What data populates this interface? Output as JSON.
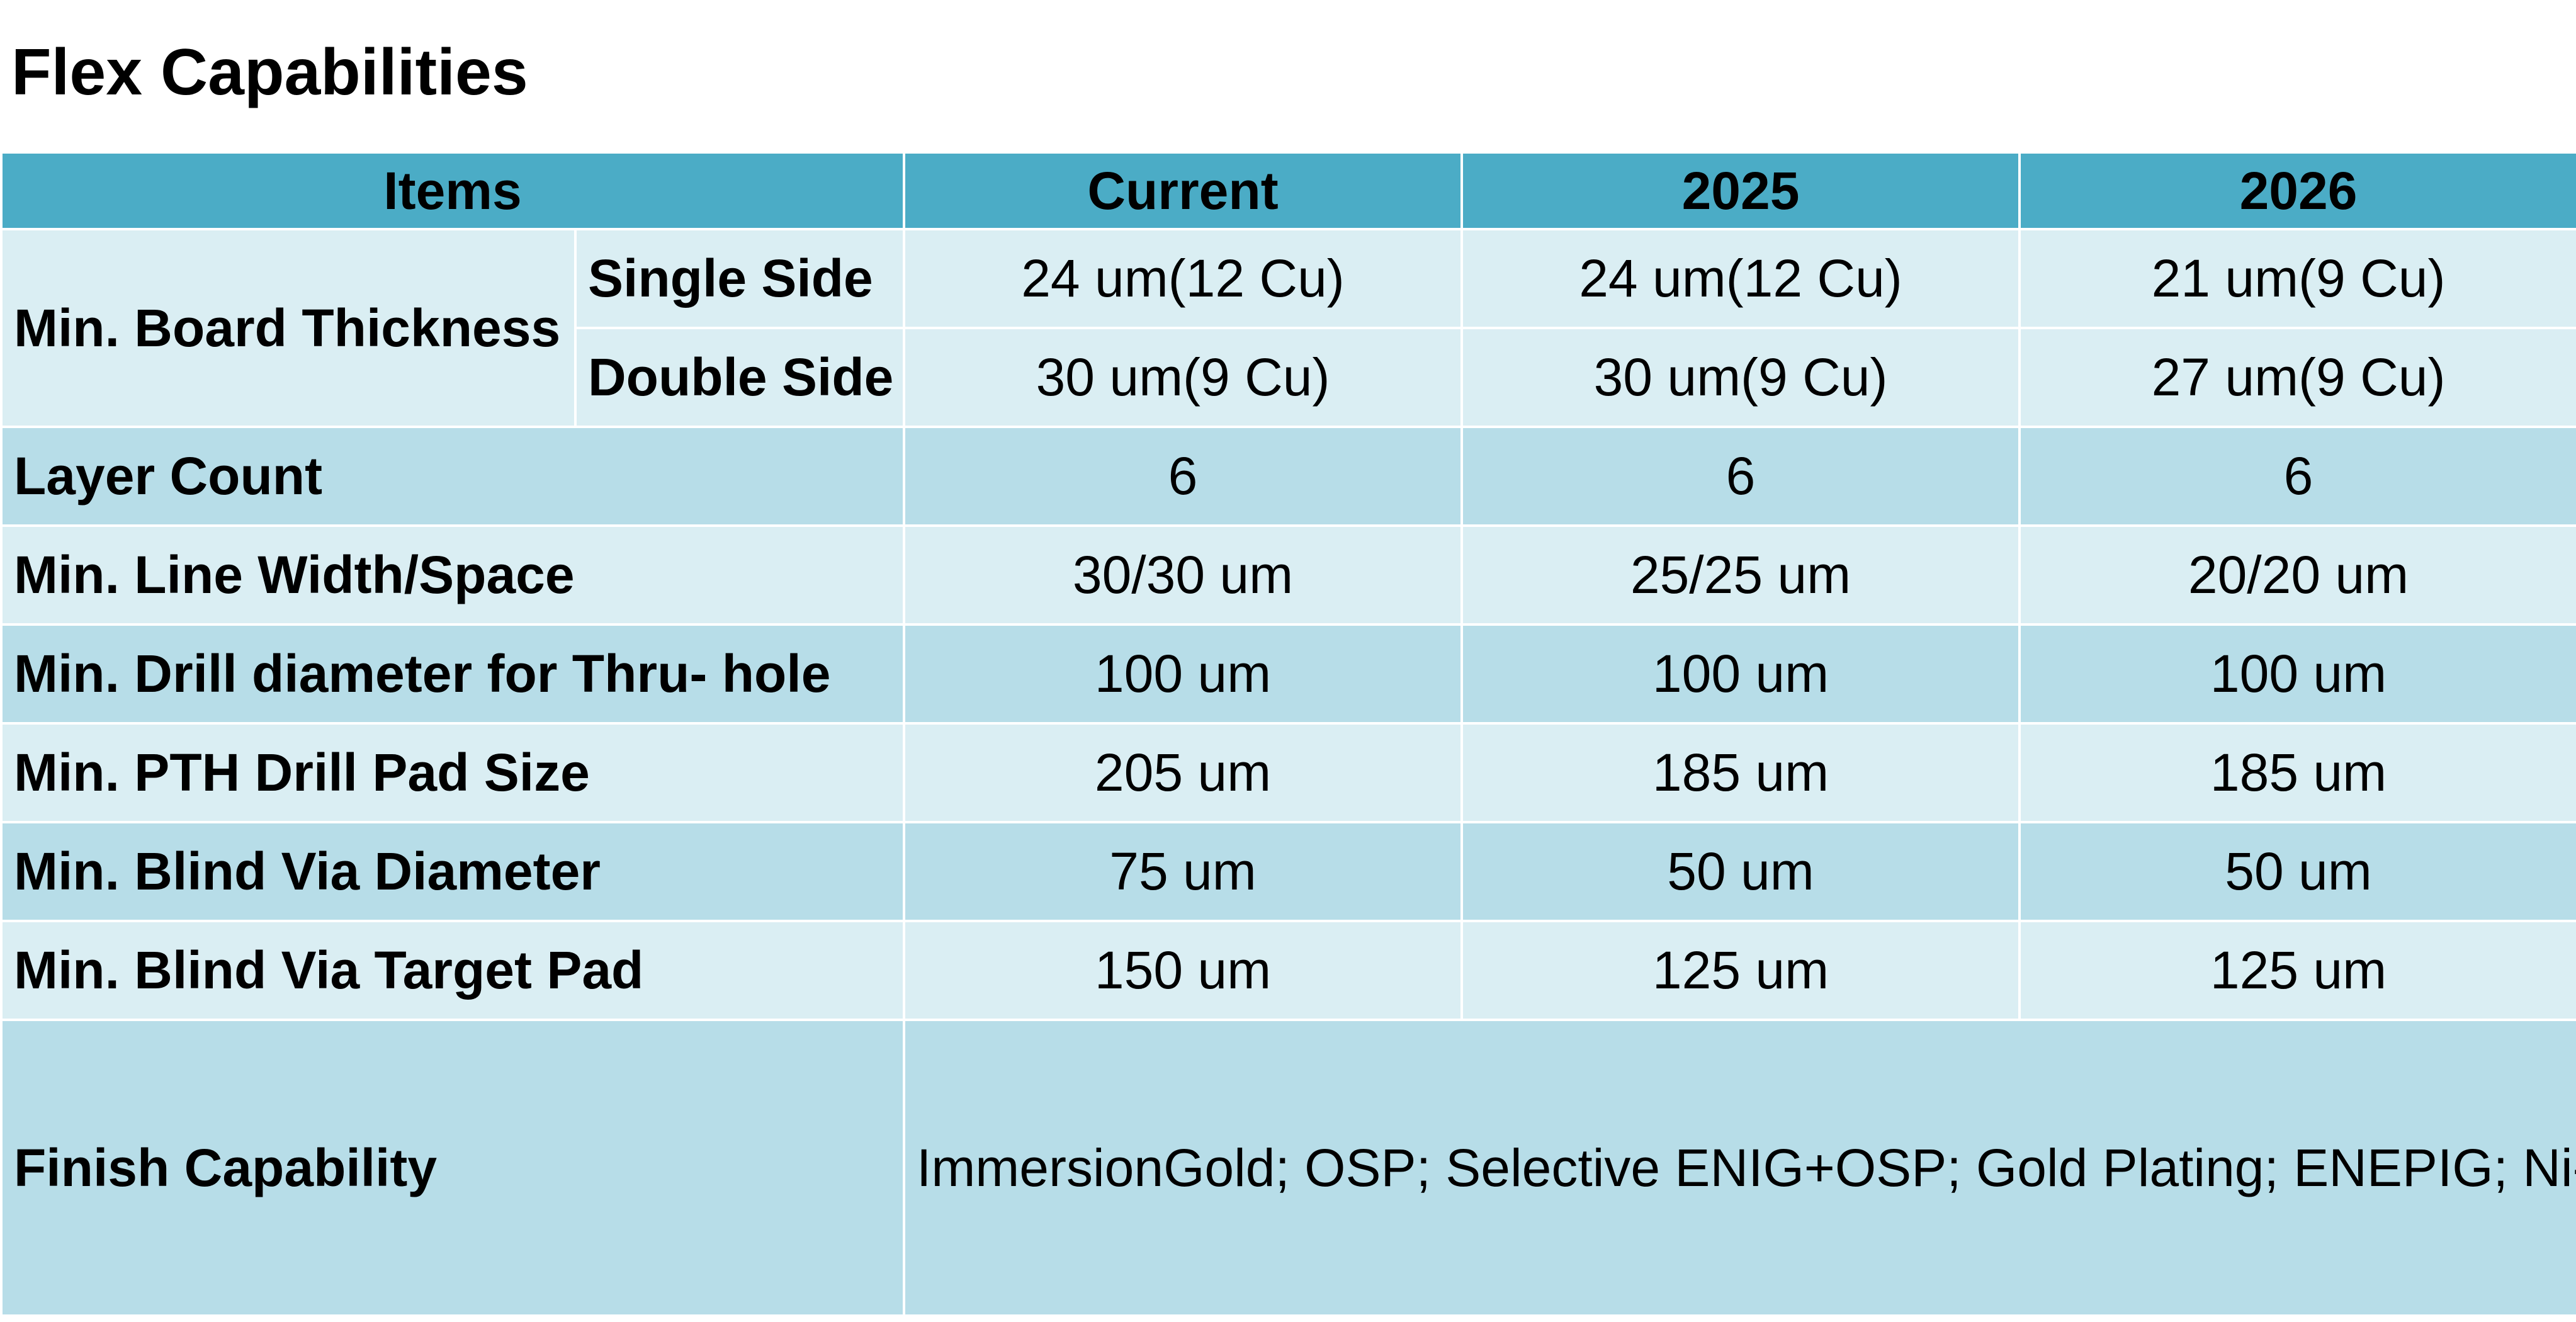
{
  "title": "Flex Capabilities",
  "colors": {
    "header_bg": "#4bacc6",
    "row_light": "#daeef3",
    "row_dark": "#b7dde8"
  },
  "table": {
    "headers": [
      "Items",
      "Current",
      "2025",
      "2026"
    ],
    "board_thickness": {
      "label": "Min. Board Thickness",
      "single": {
        "label": "Single Side",
        "values": [
          "24 um(12 Cu)",
          "24 um(12 Cu)",
          "21 um(9 Cu)"
        ]
      },
      "double": {
        "label": "Double Side",
        "values": [
          "30 um(9 Cu)",
          "30 um(9 Cu)",
          "27 um(9 Cu)"
        ]
      }
    },
    "rows": [
      {
        "label": "Layer Count",
        "values": [
          "6",
          "6",
          "6"
        ]
      },
      {
        "label": "Min. Line Width/Space",
        "values": [
          "30/30 um",
          "25/25 um",
          "20/20 um"
        ]
      },
      {
        "label": "Min. Drill diameter for Thru- hole",
        "values": [
          "100 um",
          "100 um",
          "100 um"
        ]
      },
      {
        "label": "Min. PTH Drill Pad Size",
        "values": [
          "205 um",
          "185 um",
          "185 um"
        ]
      },
      {
        "label": "Min. Blind Via Diameter",
        "values": [
          "75 um",
          "50 um",
          "50 um"
        ]
      },
      {
        "label": "Min. Blind Via Target Pad",
        "values": [
          "150 um",
          "125 um",
          "125 um"
        ]
      }
    ],
    "finish": {
      "label": "Finish Capability",
      "value": "ImmersionGold; OSP; Selective ENIG+OSP; Gold Plating; ENEPIG; Ni-Pd-Au (SMT&Wire Bonding) ; Soft NI/Gold; Tin Plating; Electroless Tin"
    }
  }
}
